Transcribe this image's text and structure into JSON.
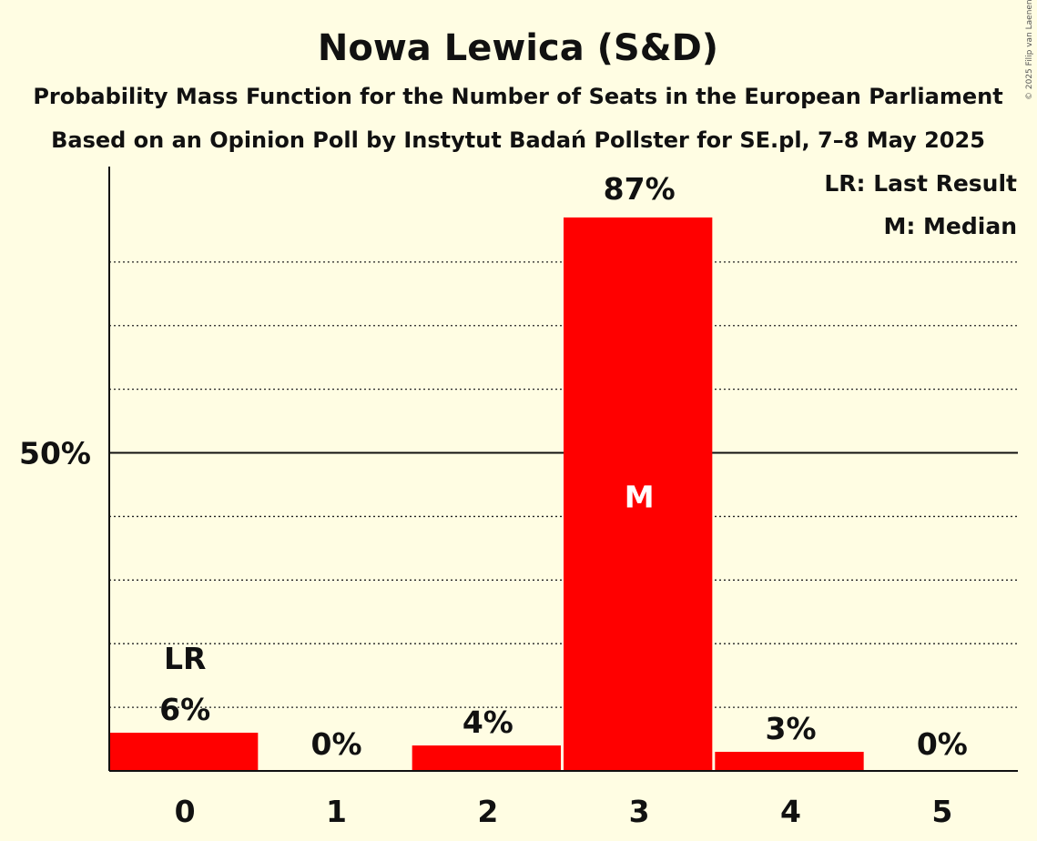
{
  "chart_data": {
    "type": "bar",
    "title": "Nowa Lewica (S&D)",
    "subtitle_lines": [
      "Probability Mass Function for the Number of Seats in the European Parliament",
      "Based on an Opinion Poll by Instytut Badań Pollster for SE.pl, 7–8 May 2025"
    ],
    "categories": [
      "0",
      "1",
      "2",
      "3",
      "4",
      "5"
    ],
    "values": [
      6,
      0,
      4,
      87,
      3,
      0
    ],
    "value_labels": [
      "6%",
      "0%",
      "4%",
      "87%",
      "3%",
      "0%"
    ],
    "ylim": [
      0,
      95
    ],
    "y_tick_value": 50,
    "y_tick_label": "50%",
    "minor_gridlines": [
      10,
      20,
      30,
      40,
      60,
      70,
      80
    ],
    "grid": true,
    "bar_color": "#ff0000",
    "last_result_index": 0,
    "last_result_marker": "LR",
    "median_index": 3,
    "median_marker": "M",
    "legend": [
      "LR: Last Result",
      "M: Median"
    ],
    "legend_position": "top-right"
  },
  "copyright": "© 2025 Filip van Laenen"
}
